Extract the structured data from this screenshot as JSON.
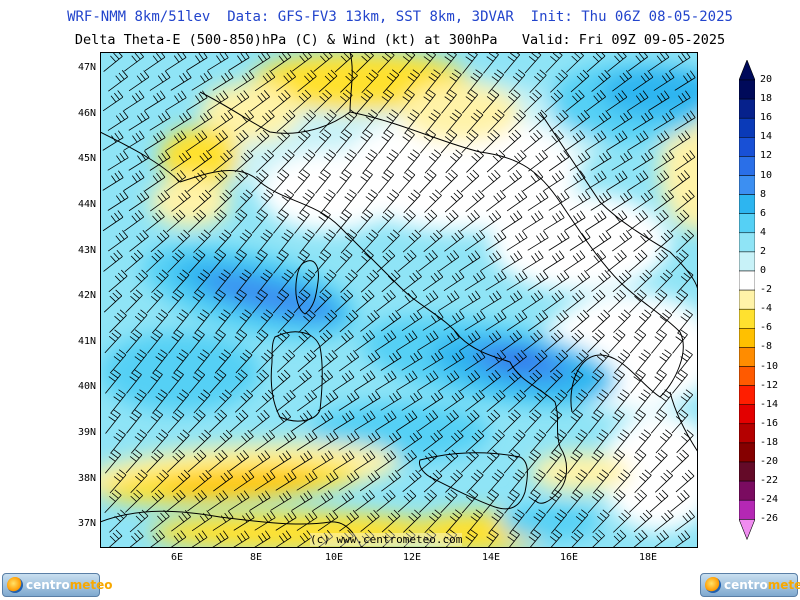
{
  "header": {
    "line1": "WRF-NMM 8km/51lev  Data: GFS-FV3 13km, SST 8km, 3DVAR  Init: Thu 06Z 08-05-2025",
    "line2": "Delta Theta-E (500-850)hPa (C) & Wind (kt) at 300hPa   Valid: Fri 09Z 09-05-2025"
  },
  "map": {
    "lat_ticks": [
      "47N",
      "46N",
      "45N",
      "44N",
      "43N",
      "42N",
      "41N",
      "40N",
      "39N",
      "38N",
      "37N"
    ],
    "lon_ticks": [
      "6E",
      "8E",
      "10E",
      "12E",
      "14E",
      "16E",
      "18E"
    ],
    "lat_range": [
      36.5,
      47.3
    ],
    "lon_range": [
      4.2,
      19.3
    ],
    "wind_barbs": "westerly flow across domain"
  },
  "credit": "(c) www.centrometeo.com",
  "colorbar": {
    "labels": [
      "20",
      "18",
      "16",
      "14",
      "12",
      "10",
      "8",
      "6",
      "4",
      "2",
      "0",
      "-2",
      "-4",
      "-6",
      "-8",
      "-10",
      "-12",
      "-14",
      "-16",
      "-18",
      "-20",
      "-22",
      "-24",
      "-26"
    ],
    "colors": [
      "#000a5a",
      "#06218c",
      "#0a3ab8",
      "#1850d6",
      "#2a6fe8",
      "#3c8ff2",
      "#2db5f0",
      "#55d0f5",
      "#8fe4f6",
      "#c8f2f8",
      "#ffffff",
      "#fff3a8",
      "#ffe12f",
      "#ffc000",
      "#ff8c00",
      "#ff5a00",
      "#ff1e00",
      "#e30000",
      "#b40000",
      "#850000",
      "#640a28",
      "#7a0b60",
      "#b428b4",
      "#f08cf0"
    ]
  },
  "logos": {
    "left": {
      "a": "centro",
      "b": "meteo"
    },
    "right": {
      "a": "centro",
      "b": "meteo"
    }
  }
}
